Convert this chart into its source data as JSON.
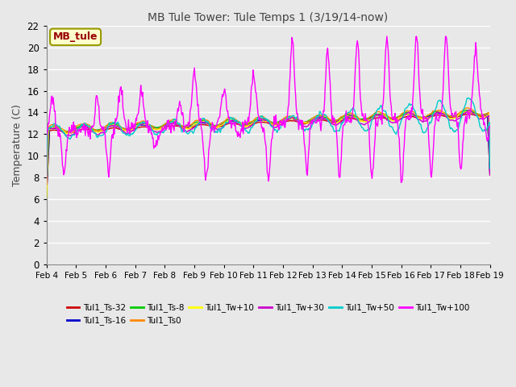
{
  "title": "MB Tule Tower: Tule Temps 1 (3/19/14-now)",
  "ylabel": "Temperature (C)",
  "ylim": [
    0,
    22
  ],
  "yticks": [
    0,
    2,
    4,
    6,
    8,
    10,
    12,
    14,
    16,
    18,
    20,
    22
  ],
  "bg_color": "#e8e8e8",
  "plot_bg": "#e8e8e8",
  "series": [
    {
      "label": "Tul1_Ts-32",
      "color": "#cc0000"
    },
    {
      "label": "Tul1_Ts-16",
      "color": "#0000cc"
    },
    {
      "label": "Tul1_Ts-8",
      "color": "#00cc00"
    },
    {
      "label": "Tul1_Ts0",
      "color": "#ff8800"
    },
    {
      "label": "Tul1_Tw+10",
      "color": "#ffff00"
    },
    {
      "label": "Tul1_Tw+30",
      "color": "#cc00cc"
    },
    {
      "label": "Tul1_Tw+50",
      "color": "#00cccc"
    },
    {
      "label": "Tul1_Tw+100",
      "color": "#ff00ff"
    }
  ],
  "annotation": "MB_tule",
  "annotation_color": "#990000",
  "annotation_bg": "#ffffcc",
  "annotation_border": "#999900",
  "xlim": [
    0,
    15
  ],
  "x_labels": [
    "Feb 4",
    "Feb 5",
    "Feb 6",
    "Feb 7",
    "Feb 8",
    "Feb 9",
    "Feb 10",
    "Feb 11",
    "Feb 12",
    "Feb 13",
    "Feb 14",
    "Feb 15",
    "Feb 16",
    "Feb 17",
    "Feb 18",
    "Feb 19"
  ]
}
